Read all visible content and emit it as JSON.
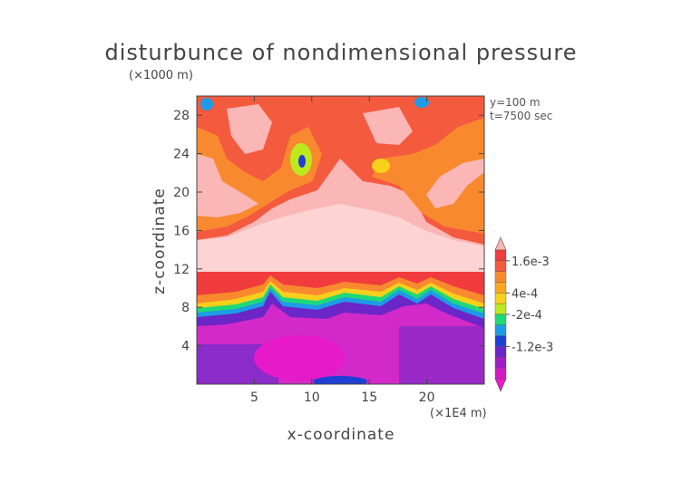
{
  "chart_data": {
    "type": "heatmap",
    "title": "disturbunce of nondimensional pressure",
    "xlabel": "x-coordinate",
    "ylabel": "z-coordinate",
    "x_scale_note": "(×1E4 m)",
    "y_scale_note": "(×1000 m)",
    "xlim": [
      0,
      25
    ],
    "ylim": [
      0,
      30
    ],
    "x_ticks": [
      5,
      10,
      15,
      20
    ],
    "y_ticks": [
      4,
      8,
      12,
      16,
      20,
      24,
      28
    ],
    "annotations": [
      "y=100 m",
      "t=7500 sec"
    ],
    "colorbar": {
      "labels": [
        "1.6e-3",
        "4e-4",
        "-2e-4",
        "-1.2e-3"
      ],
      "colors": [
        "#fbb6b6",
        "#f03c3c",
        "#f45a3e",
        "#f9892f",
        "#fba520",
        "#f7d01c",
        "#bde81e",
        "#1fd878",
        "#1e9be6",
        "#1d3fd6",
        "#6a26c6",
        "#a01fc3",
        "#d31ac6",
        "#ea19c8"
      ]
    },
    "field_layers": [
      {
        "band": "base_lower",
        "z_range": [
          0,
          7
        ],
        "color": "#d525c8"
      },
      {
        "band": "transition",
        "z_range": [
          7,
          11
        ],
        "color": "#f59a2a"
      },
      {
        "band": "upper_mid",
        "z_range": [
          11,
          16
        ],
        "color": "#fbb6b6"
      },
      {
        "band": "upper_top",
        "z_range": [
          16,
          30
        ],
        "color": "#f45a3e"
      }
    ]
  }
}
